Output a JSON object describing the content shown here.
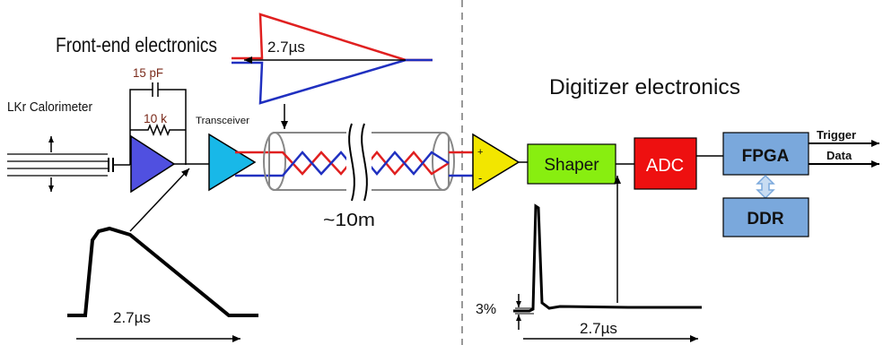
{
  "labels": {
    "front_end": "Front-end electronics",
    "digitizer": "Digitizer electronics",
    "calorimeter": "LKr Calorimeter",
    "capacitor": "15 pF",
    "resistor": "10 k",
    "transceiver": "Transceiver",
    "cable_length": "~10m",
    "pulse_top": "2.7µs",
    "pulse_bottom_left": "2.7µs",
    "pulse_bottom_right": "2.7µs",
    "percent": "3%",
    "plus": "+",
    "minus": "-",
    "shaper": "Shaper",
    "adc": "ADC",
    "fpga": "FPGA",
    "ddr": "DDR",
    "trigger": "Trigger",
    "data": "Data"
  },
  "colors": {
    "amp_blue": "#5050e0",
    "transceiver_cyan": "#18b8e8",
    "receiver_yellow": "#f2e600",
    "shaper_green": "#88ee10",
    "adc_red": "#ee1010",
    "fpga_blue": "#7aa8dc",
    "wire_red": "#e02020",
    "wire_blue": "#2030c0"
  }
}
